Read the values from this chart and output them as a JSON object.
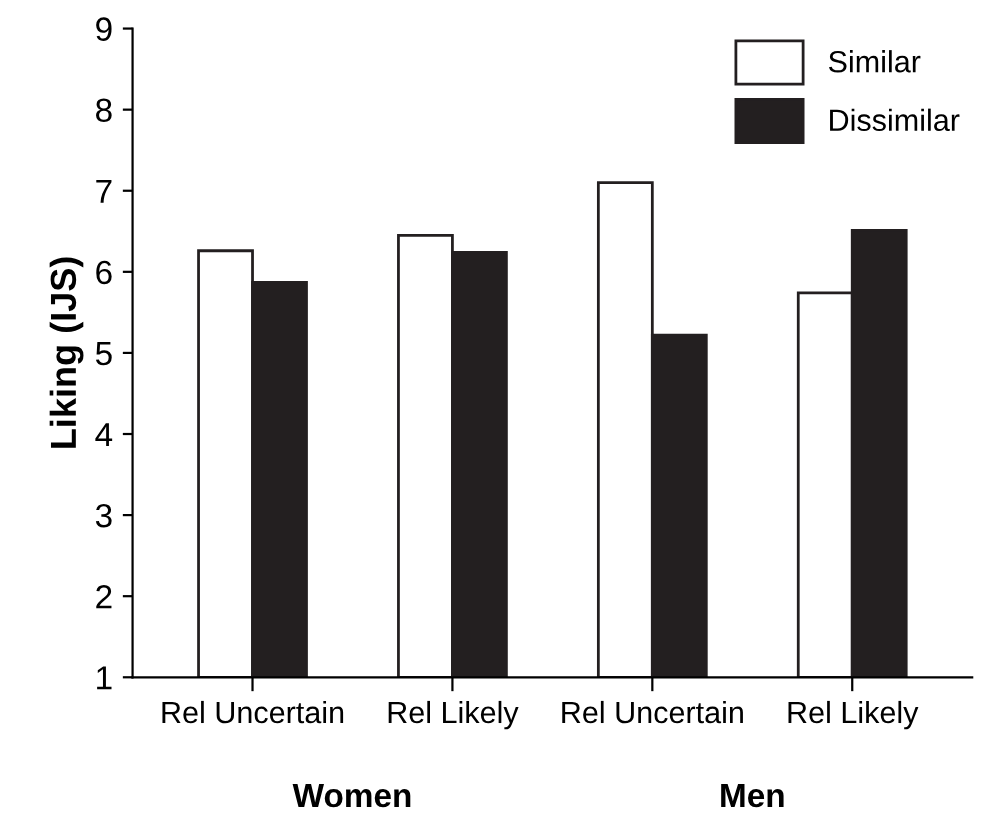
{
  "chart_data": {
    "type": "bar",
    "ylabel": "Liking (IJS)",
    "categories": [
      "Rel Uncertain",
      "Rel Likely",
      "Rel Uncertain",
      "Rel Likely"
    ],
    "series": [
      {
        "name": "Similar",
        "color": "#ffffff",
        "values": [
          6.26,
          6.45,
          7.1,
          5.74
        ]
      },
      {
        "name": "Dissimilar",
        "color": "#231f20",
        "values": [
          5.87,
          6.24,
          5.22,
          6.51
        ]
      }
    ],
    "annotations": [
      "Women",
      "Men"
    ],
    "ylim": [
      1,
      9
    ],
    "yticks": [
      1,
      2,
      3,
      4,
      5,
      6,
      7,
      8,
      9
    ],
    "grid": false,
    "legend": "top right"
  }
}
